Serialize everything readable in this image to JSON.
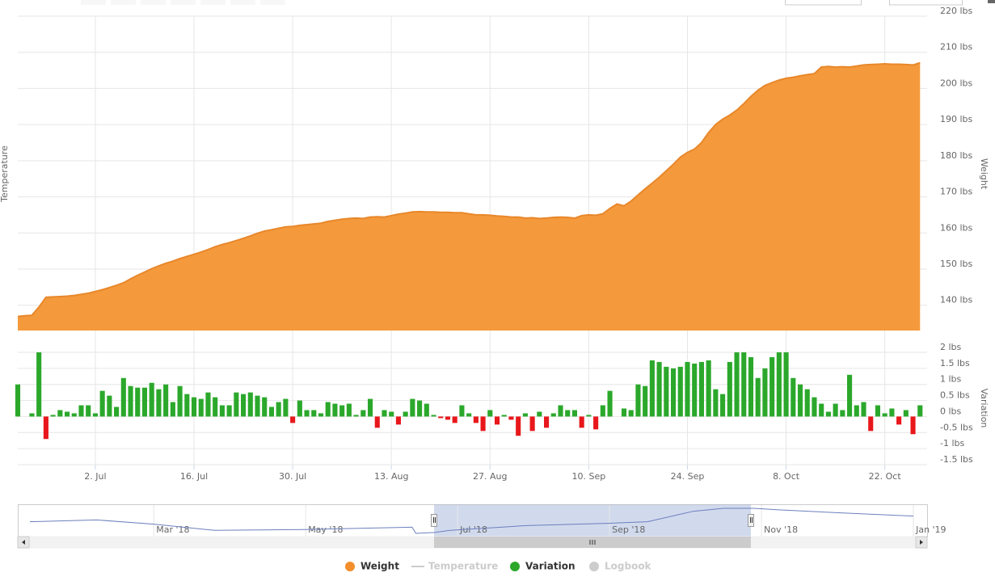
{
  "chart_data": [
    {
      "type": "area",
      "y_label": "Weight",
      "y_label_left": "Temperature",
      "color": "#f49a3c",
      "line_color": "#e8872a",
      "grid": true,
      "x": [
        0,
        1,
        2,
        3,
        4,
        5,
        6,
        7,
        8,
        9,
        10,
        11,
        12,
        13,
        14,
        15,
        16,
        17,
        18,
        19,
        20,
        21,
        22,
        23,
        24,
        25,
        26,
        27,
        28,
        29,
        30,
        31,
        32,
        33,
        34,
        35,
        36,
        37,
        38,
        39,
        40,
        41,
        42,
        43,
        44,
        45,
        46,
        47,
        48,
        49,
        50,
        51,
        52,
        53,
        54,
        55,
        56,
        57,
        58,
        59,
        60,
        61,
        62,
        63,
        64,
        65,
        66,
        67,
        68,
        69,
        70,
        71,
        72,
        73,
        74,
        75,
        76,
        77,
        78,
        79,
        80,
        81,
        82,
        83,
        84,
        85,
        86,
        87,
        88,
        89,
        90,
        91,
        92,
        93,
        94,
        95,
        96,
        97,
        98,
        99,
        100,
        101,
        102,
        103,
        104,
        105,
        106,
        107,
        108,
        109,
        110,
        111,
        112,
        113,
        114,
        115,
        116,
        117,
        118,
        119,
        120,
        121,
        122,
        123,
        124,
        125,
        126,
        127,
        128
      ],
      "values": [
        136.9,
        137.1,
        137.2,
        139.5,
        142.2,
        142.3,
        142.4,
        142.5,
        142.7,
        143.0,
        143.3,
        143.8,
        144.3,
        144.9,
        145.5,
        146.2,
        147.3,
        148.3,
        149.2,
        150.1,
        150.9,
        151.6,
        152.2,
        152.9,
        153.5,
        154.1,
        154.7,
        155.4,
        156.2,
        156.8,
        157.3,
        157.9,
        158.5,
        159.2,
        159.9,
        160.5,
        160.9,
        161.3,
        161.7,
        161.8,
        162.1,
        162.3,
        162.5,
        162.7,
        163.2,
        163.5,
        163.8,
        164.0,
        164.1,
        164.0,
        164.4,
        164.5,
        164.4,
        164.8,
        165.2,
        165.5,
        165.8,
        165.9,
        165.8,
        165.8,
        165.7,
        165.7,
        165.6,
        165.6,
        165.3,
        165.0,
        165.0,
        164.9,
        164.7,
        164.6,
        164.4,
        164.4,
        164.1,
        164.2,
        164.0,
        164.1,
        164.3,
        164.4,
        164.3,
        164.1,
        164.8,
        165.0,
        164.9,
        165.3,
        166.8,
        168.0,
        167.5,
        168.8,
        170.5,
        172.2,
        173.8,
        175.4,
        177.2,
        179.0,
        181.0,
        182.3,
        183.2,
        185.0,
        187.8,
        190.0,
        191.5,
        192.6,
        194.0,
        195.8,
        197.8,
        199.5,
        200.8,
        201.6,
        202.3,
        202.8,
        203.1,
        203.5,
        203.8,
        204.1,
        205.9,
        206.1,
        205.9,
        206.0,
        205.9,
        206.2,
        206.5,
        206.6,
        206.7,
        206.8,
        206.7,
        206.7,
        206.6,
        206.5,
        207.1
      ],
      "xlim": [
        0,
        129
      ],
      "xticks": [
        {
          "value": 11,
          "label": "2. Jul"
        },
        {
          "value": 25,
          "label": "16. Jul"
        },
        {
          "value": 39,
          "label": "30. Jul"
        },
        {
          "value": 53,
          "label": "13. Aug"
        },
        {
          "value": 67,
          "label": "27. Aug"
        },
        {
          "value": 81,
          "label": "10. Sep"
        },
        {
          "value": 95,
          "label": "24. Sep"
        },
        {
          "value": 109,
          "label": "8. Oct"
        },
        {
          "value": 123,
          "label": "22. Oct"
        }
      ],
      "ylim": [
        133,
        220
      ],
      "yticks": [
        {
          "value": 140,
          "label": "140 lbs"
        },
        {
          "value": 150,
          "label": "150 lbs"
        },
        {
          "value": 160,
          "label": "160 lbs"
        },
        {
          "value": 170,
          "label": "170 lbs"
        },
        {
          "value": 180,
          "label": "180 lbs"
        },
        {
          "value": 190,
          "label": "190 lbs"
        },
        {
          "value": 200,
          "label": "200 lbs"
        },
        {
          "value": 210,
          "label": "210 lbs"
        },
        {
          "value": 220,
          "label": "220 lbs"
        }
      ]
    },
    {
      "type": "bar",
      "y_label": "Variation",
      "color": "#2ba82b",
      "negative_color": "#e8171b",
      "grid": true,
      "x": [
        0,
        1,
        2,
        3,
        4,
        5,
        6,
        7,
        8,
        9,
        10,
        11,
        12,
        13,
        14,
        15,
        16,
        17,
        18,
        19,
        20,
        21,
        22,
        23,
        24,
        25,
        26,
        27,
        28,
        29,
        30,
        31,
        32,
        33,
        34,
        35,
        36,
        37,
        38,
        39,
        40,
        41,
        42,
        43,
        44,
        45,
        46,
        47,
        48,
        49,
        50,
        51,
        52,
        53,
        54,
        55,
        56,
        57,
        58,
        59,
        60,
        61,
        62,
        63,
        64,
        65,
        66,
        67,
        68,
        69,
        70,
        71,
        72,
        73,
        74,
        75,
        76,
        77,
        78,
        79,
        80,
        81,
        82,
        83,
        84,
        85,
        86,
        87,
        88,
        89,
        90,
        91,
        92,
        93,
        94,
        95,
        96,
        97,
        98,
        99,
        100,
        101,
        102,
        103,
        104,
        105,
        106,
        107,
        108,
        109,
        110,
        111,
        112,
        113,
        114,
        115,
        116,
        117,
        118,
        119,
        120,
        121,
        122,
        123,
        124,
        125,
        126,
        127,
        128
      ],
      "values": [
        1.0,
        0,
        0.1,
        2.0,
        -0.7,
        0.05,
        0.2,
        0.15,
        0.1,
        0.35,
        0.35,
        0.1,
        0.8,
        0.65,
        0.3,
        1.2,
        0.95,
        0.9,
        0.9,
        1.05,
        0.85,
        1.0,
        0.45,
        0.95,
        0.7,
        0.6,
        0.55,
        0.75,
        0.6,
        0.35,
        0.35,
        0.75,
        0.7,
        0.75,
        0.65,
        0.6,
        0.3,
        0.45,
        0.55,
        -0.2,
        0.5,
        0.2,
        0.2,
        0.1,
        0.45,
        0.4,
        0.35,
        0.4,
        0.05,
        0.2,
        0.55,
        -0.35,
        0.2,
        0.15,
        -0.25,
        0.15,
        0.55,
        0.5,
        0.4,
        0.05,
        -0.05,
        -0.1,
        -0.2,
        0.35,
        0.1,
        -0.2,
        -0.45,
        0.2,
        -0.25,
        0.05,
        -0.1,
        -0.6,
        0.1,
        -0.45,
        0.15,
        -0.35,
        0.1,
        0.35,
        0.2,
        0.2,
        -0.35,
        0.05,
        -0.4,
        0.35,
        0.8,
        0,
        0.25,
        0.2,
        1.0,
        0.95,
        1.75,
        1.7,
        1.55,
        1.5,
        1.55,
        1.7,
        1.65,
        1.7,
        1.75,
        0.85,
        0.7,
        1.7,
        2.0,
        2.0,
        1.85,
        1.2,
        1.5,
        1.85,
        2.0,
        2.0,
        1.2,
        1.0,
        0.85,
        0.6,
        0.4,
        0.15,
        0.4,
        0.2,
        1.3,
        0.35,
        0.45,
        -0.45,
        0.35,
        0.1,
        0.25,
        -0.25,
        0.2,
        -0.55,
        0.35
      ],
      "xlim": [
        0,
        129
      ],
      "ylim": [
        -1.5,
        2
      ],
      "yticks": [
        {
          "value": -1.5,
          "label": "-1.5 lbs"
        },
        {
          "value": -1,
          "label": "-1 lbs"
        },
        {
          "value": -0.5,
          "label": "-0.5 lbs"
        },
        {
          "value": 0,
          "label": "0 lbs"
        },
        {
          "value": 0.5,
          "label": "0.5 lbs"
        },
        {
          "value": 1,
          "label": "1 lbs"
        },
        {
          "value": 1.5,
          "label": "1.5 lbs"
        },
        {
          "value": 2,
          "label": "2 lbs"
        }
      ]
    },
    {
      "type": "navigator",
      "color": "#6c7fbd",
      "x": [
        0.37,
        1.25,
        2.0,
        2.8,
        4.0,
        5.4,
        5.45,
        5.7,
        5.9,
        6.9,
        8.0,
        8.5,
        9.1,
        9.5,
        9.9,
        10.2,
        11.1,
        12.0
      ],
      "values": [
        47,
        53,
        39,
        18,
        21,
        29,
        8,
        11,
        18,
        34,
        42,
        47,
        82,
        92,
        92,
        87,
        76,
        66
      ],
      "xlim": [
        0.21,
        12.18
      ],
      "ylim": [
        0,
        100
      ],
      "xticks": [
        {
          "value": 2,
          "label": "Mar '18"
        },
        {
          "value": 4,
          "label": "May '18"
        },
        {
          "value": 6,
          "label": "Jul '18"
        },
        {
          "value": 8,
          "label": "Sep '18"
        },
        {
          "value": 10,
          "label": "Nov '18"
        },
        {
          "value": 12,
          "label": "Jan '19"
        }
      ]
    }
  ],
  "legend": [
    {
      "name": "Weight",
      "color": "#f28f2c",
      "symbol": "circle",
      "visible": true
    },
    {
      "name": "Temperature",
      "color": "#cccccc",
      "symbol": "line",
      "visible": false
    },
    {
      "name": "Variation",
      "color": "#2ba82b",
      "symbol": "circle",
      "visible": true
    },
    {
      "name": "Logbook",
      "color": "#cccccc",
      "symbol": "circle",
      "visible": false
    }
  ]
}
